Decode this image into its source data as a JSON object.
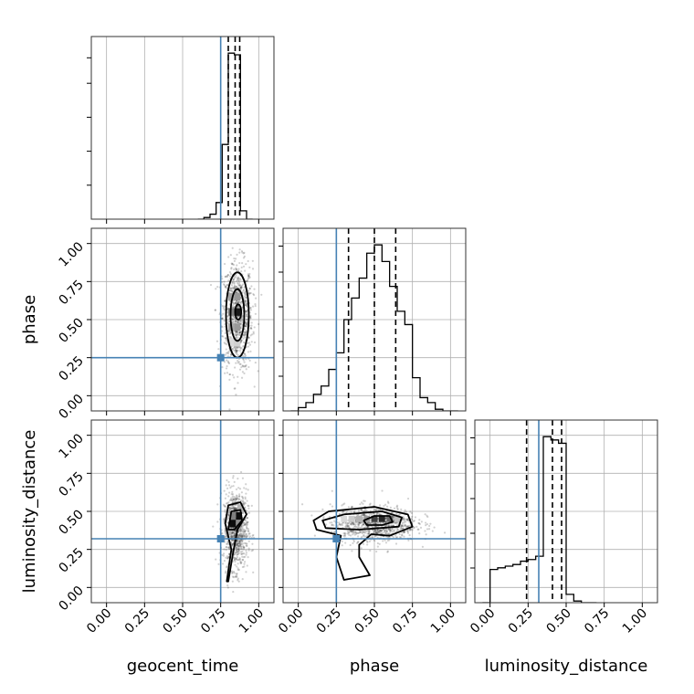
{
  "chart_data": {
    "type": "corner",
    "parameters": [
      "geocent_time",
      "phase",
      "luminosity_distance"
    ],
    "labels": {
      "geocent_time": "geocent_time",
      "phase": "phase",
      "luminosity_distance": "luminosity_distance"
    },
    "range": [
      -0.1,
      1.1
    ],
    "ticks": [
      0.0,
      0.25,
      0.5,
      0.75,
      1.0
    ],
    "tick_labels": [
      "0.00",
      "0.25",
      "0.50",
      "0.75",
      "1.00"
    ],
    "grid": true,
    "truths": {
      "geocent_time": 0.75,
      "phase": 0.25,
      "luminosity_distance": 0.32
    },
    "colors": {
      "truth": "#4682b4",
      "hist": "#000000"
    },
    "histograms": {
      "geocent_time": {
        "bin_edges": [
          0.6,
          0.64,
          0.68,
          0.72,
          0.76,
          0.8,
          0.84,
          0.88,
          0.92,
          0.96
        ],
        "counts": [
          0,
          1,
          3,
          10,
          45,
          100,
          99,
          5,
          0
        ],
        "quantiles": [
          0.8,
          0.845,
          0.875
        ]
      },
      "phase": {
        "bin_edges": [
          -0.05,
          0.0,
          0.05,
          0.1,
          0.15,
          0.2,
          0.25,
          0.3,
          0.35,
          0.4,
          0.45,
          0.5,
          0.55,
          0.6,
          0.65,
          0.7,
          0.75,
          0.8,
          0.85,
          0.9,
          0.95,
          1.0,
          1.05
        ],
        "counts": [
          0,
          2,
          5,
          10,
          15,
          25,
          35,
          55,
          68,
          80,
          95,
          100,
          90,
          75,
          60,
          52,
          20,
          8,
          5,
          1,
          0,
          0
        ],
        "quantiles": [
          0.33,
          0.5,
          0.64
        ]
      },
      "luminosity_distance": {
        "bin_edges": [
          -0.05,
          0.0,
          0.05,
          0.1,
          0.15,
          0.2,
          0.25,
          0.3,
          0.35,
          0.4,
          0.45,
          0.5,
          0.55,
          0.6,
          0.65,
          0.7
        ],
        "counts": [
          0,
          20,
          21,
          22,
          23,
          25,
          26,
          28,
          100,
          98,
          96,
          5,
          1,
          0,
          0
        ],
        "quantiles": [
          0.24,
          0.41,
          0.47
        ]
      }
    },
    "scatter_panels": [
      {
        "x": "geocent_time",
        "y": "phase",
        "cloud": {
          "cx": 0.86,
          "cy": 0.52,
          "sx": 0.05,
          "sy": 0.18
        },
        "contours": [
          {
            "cx": 0.86,
            "cy": 0.53,
            "rx": 0.075,
            "ry": 0.28
          },
          {
            "cx": 0.86,
            "cy": 0.53,
            "rx": 0.045,
            "ry": 0.17
          },
          {
            "cx": 0.865,
            "cy": 0.55,
            "rx": 0.02,
            "ry": 0.05
          }
        ],
        "density_cells": [
          {
            "x": 0.82,
            "y": 0.45,
            "d": 0.35
          },
          {
            "x": 0.86,
            "y": 0.45,
            "d": 0.4
          },
          {
            "x": 0.82,
            "y": 0.55,
            "d": 0.5
          },
          {
            "x": 0.86,
            "y": 0.55,
            "d": 0.9
          },
          {
            "x": 0.82,
            "y": 0.65,
            "d": 0.35
          },
          {
            "x": 0.86,
            "y": 0.65,
            "d": 0.4
          },
          {
            "x": 0.82,
            "y": 0.35,
            "d": 0.15
          },
          {
            "x": 0.86,
            "y": 0.35,
            "d": 0.18
          }
        ]
      },
      {
        "x": "geocent_time",
        "y": "luminosity_distance",
        "cloud": {
          "cx": 0.85,
          "cy": 0.38,
          "sx": 0.04,
          "sy": 0.13
        },
        "contours": [
          {
            "points": [
              [
                0.79,
                0.04
              ],
              [
                0.82,
                0.25
              ],
              [
                0.78,
                0.42
              ],
              [
                0.8,
                0.54
              ],
              [
                0.88,
                0.56
              ],
              [
                0.92,
                0.48
              ],
              [
                0.86,
                0.38
              ],
              [
                0.83,
                0.22
              ],
              [
                0.8,
                0.04
              ]
            ]
          },
          {
            "points": [
              [
                0.8,
                0.38
              ],
              [
                0.82,
                0.5
              ],
              [
                0.88,
                0.51
              ],
              [
                0.89,
                0.44
              ],
              [
                0.84,
                0.38
              ]
            ]
          }
        ],
        "density_cells": [
          {
            "x": 0.83,
            "y": 0.42,
            "d": 0.95
          },
          {
            "x": 0.87,
            "y": 0.47,
            "d": 0.95
          },
          {
            "x": 0.87,
            "y": 0.42,
            "d": 0.45
          },
          {
            "x": 0.83,
            "y": 0.47,
            "d": 0.5
          },
          {
            "x": 0.8,
            "y": 0.37,
            "d": 0.3
          },
          {
            "x": 0.88,
            "y": 0.52,
            "d": 0.3
          }
        ]
      },
      {
        "x": "phase",
        "y": "luminosity_distance",
        "cloud": {
          "cx": 0.5,
          "cy": 0.42,
          "sx": 0.14,
          "sy": 0.06
        },
        "contours": [
          {
            "points": [
              [
                0.1,
                0.44
              ],
              [
                0.2,
                0.5
              ],
              [
                0.5,
                0.53
              ],
              [
                0.72,
                0.48
              ],
              [
                0.75,
                0.4
              ],
              [
                0.6,
                0.34
              ],
              [
                0.48,
                0.35
              ],
              [
                0.4,
                0.28
              ],
              [
                0.4,
                0.2
              ],
              [
                0.47,
                0.08
              ],
              [
                0.3,
                0.05
              ],
              [
                0.25,
                0.2
              ],
              [
                0.28,
                0.34
              ],
              [
                0.12,
                0.38
              ]
            ]
          },
          {
            "points": [
              [
                0.16,
                0.44
              ],
              [
                0.3,
                0.48
              ],
              [
                0.55,
                0.5
              ],
              [
                0.68,
                0.46
              ],
              [
                0.66,
                0.4
              ],
              [
                0.4,
                0.38
              ],
              [
                0.18,
                0.39
              ]
            ]
          },
          {
            "points": [
              [
                0.43,
                0.44
              ],
              [
                0.5,
                0.47
              ],
              [
                0.6,
                0.47
              ],
              [
                0.62,
                0.43
              ],
              [
                0.55,
                0.41
              ],
              [
                0.45,
                0.41
              ]
            ]
          }
        ],
        "density_cells": [
          {
            "x": 0.45,
            "y": 0.45,
            "d": 0.4
          },
          {
            "x": 0.5,
            "y": 0.45,
            "d": 0.75
          },
          {
            "x": 0.55,
            "y": 0.45,
            "d": 0.85
          },
          {
            "x": 0.6,
            "y": 0.45,
            "d": 0.6
          },
          {
            "x": 0.4,
            "y": 0.45,
            "d": 0.3
          },
          {
            "x": 0.35,
            "y": 0.45,
            "d": 0.2
          },
          {
            "x": 0.65,
            "y": 0.45,
            "d": 0.25
          },
          {
            "x": 0.3,
            "y": 0.45,
            "d": 0.15
          }
        ]
      }
    ]
  }
}
